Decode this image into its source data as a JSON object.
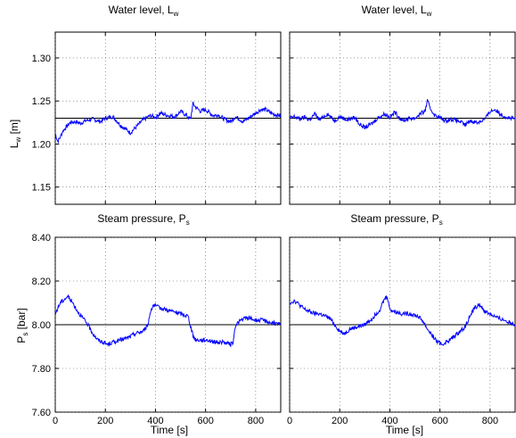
{
  "chart_data": [
    {
      "type": "line",
      "title": "Water level, L",
      "title_subscript": "w",
      "ylabel": "L",
      "ylabel_subscript": "w",
      "ylabel_unit": " [m]",
      "xlabel": "",
      "xlim": [
        0,
        900
      ],
      "ylim": [
        1.13,
        1.33
      ],
      "yticks": [
        1.15,
        1.2,
        1.25,
        1.3
      ],
      "xticks": [
        0,
        200,
        400,
        600,
        800
      ],
      "grid": true,
      "reference": 1.23,
      "series": [
        {
          "color": "#0000ff",
          "x": [
            0,
            10,
            20,
            30,
            45,
            60,
            80,
            100,
            120,
            150,
            180,
            200,
            230,
            260,
            300,
            330,
            350,
            380,
            400,
            420,
            450,
            480,
            500,
            520,
            540,
            550,
            560,
            580,
            600,
            630,
            650,
            680,
            700,
            720,
            750,
            780,
            800,
            820,
            840,
            860,
            880,
            900
          ],
          "y": [
            1.212,
            1.203,
            1.208,
            1.215,
            1.22,
            1.225,
            1.226,
            1.224,
            1.227,
            1.229,
            1.226,
            1.23,
            1.232,
            1.222,
            1.213,
            1.222,
            1.228,
            1.233,
            1.231,
            1.236,
            1.233,
            1.232,
            1.238,
            1.234,
            1.229,
            1.247,
            1.243,
            1.238,
            1.24,
            1.233,
            1.234,
            1.228,
            1.226,
            1.232,
            1.226,
            1.232,
            1.236,
            1.24,
            1.24,
            1.236,
            1.234,
            1.233
          ]
        }
      ]
    },
    {
      "type": "line",
      "title": "Water level, L",
      "title_subscript": "w",
      "ylabel": "",
      "xlabel": "",
      "xlim": [
        0,
        900
      ],
      "ylim": [
        1.13,
        1.33
      ],
      "yticks": [
        1.15,
        1.2,
        1.25,
        1.3
      ],
      "xticks": [
        0,
        200,
        400,
        600,
        800
      ],
      "grid": true,
      "reference": 1.23,
      "series": [
        {
          "color": "#0000ff",
          "x": [
            0,
            20,
            40,
            60,
            80,
            100,
            120,
            150,
            180,
            200,
            230,
            260,
            280,
            300,
            330,
            350,
            380,
            400,
            420,
            450,
            480,
            500,
            520,
            540,
            550,
            560,
            580,
            600,
            620,
            650,
            680,
            700,
            720,
            750,
            780,
            800,
            820,
            840,
            860,
            880,
            900
          ],
          "y": [
            1.23,
            1.232,
            1.229,
            1.231,
            1.228,
            1.235,
            1.228,
            1.235,
            1.227,
            1.232,
            1.228,
            1.231,
            1.223,
            1.219,
            1.224,
            1.23,
            1.235,
            1.231,
            1.237,
            1.227,
            1.23,
            1.23,
            1.235,
            1.238,
            1.25,
            1.242,
            1.233,
            1.231,
            1.227,
            1.229,
            1.226,
            1.222,
            1.227,
            1.225,
            1.229,
            1.238,
            1.24,
            1.235,
            1.232,
            1.23,
            1.229
          ]
        }
      ]
    },
    {
      "type": "line",
      "title": "Steam pressure, P",
      "title_subscript": "s",
      "ylabel": "P",
      "ylabel_subscript": "s",
      "ylabel_unit": " [bar]",
      "xlabel": "Time [s]",
      "xlim": [
        0,
        900
      ],
      "ylim": [
        7.6,
        8.4
      ],
      "yticks": [
        7.6,
        7.8,
        8.0,
        8.2,
        8.4
      ],
      "xticks": [
        0,
        200,
        400,
        600,
        800
      ],
      "grid": true,
      "reference": 8.0,
      "series": [
        {
          "color": "#0000ff",
          "x": [
            0,
            20,
            40,
            50,
            70,
            90,
            110,
            130,
            150,
            170,
            190,
            210,
            230,
            260,
            290,
            320,
            350,
            370,
            380,
            390,
            410,
            440,
            470,
            500,
            530,
            550,
            560,
            580,
            610,
            640,
            670,
            700,
            710,
            720,
            740,
            760,
            780,
            800,
            830,
            860,
            900
          ],
          "y": [
            8.05,
            8.1,
            8.12,
            8.13,
            8.1,
            8.06,
            8.03,
            8.0,
            7.96,
            7.93,
            7.92,
            7.91,
            7.92,
            7.93,
            7.94,
            7.96,
            7.97,
            8.0,
            8.06,
            8.09,
            8.08,
            8.07,
            8.06,
            8.05,
            8.04,
            7.95,
            7.93,
            7.93,
            7.93,
            7.92,
            7.92,
            7.91,
            7.92,
            8.0,
            8.02,
            8.03,
            8.03,
            8.02,
            8.02,
            8.01,
            8.0
          ]
        }
      ]
    },
    {
      "type": "line",
      "title": "Steam pressure, P",
      "title_subscript": "s",
      "ylabel": "",
      "xlabel": "Time [s]",
      "xlim": [
        0,
        900
      ],
      "ylim": [
        7.6,
        8.4
      ],
      "yticks": [
        7.6,
        7.8,
        8.0,
        8.2,
        8.4
      ],
      "xticks": [
        0,
        200,
        400,
        600,
        800
      ],
      "grid": true,
      "reference": 8.0,
      "series": [
        {
          "color": "#0000ff",
          "x": [
            0,
            20,
            40,
            60,
            80,
            100,
            120,
            140,
            160,
            180,
            200,
            220,
            240,
            270,
            300,
            330,
            360,
            380,
            390,
            400,
            420,
            450,
            480,
            510,
            530,
            550,
            570,
            590,
            610,
            640,
            670,
            700,
            720,
            740,
            760,
            780,
            800,
            830,
            860,
            900
          ],
          "y": [
            8.1,
            8.11,
            8.09,
            8.07,
            8.06,
            8.05,
            8.05,
            8.04,
            8.03,
            8.0,
            7.97,
            7.96,
            7.98,
            7.99,
            8.0,
            8.03,
            8.07,
            8.12,
            8.13,
            8.07,
            8.06,
            8.05,
            8.05,
            8.04,
            8.02,
            7.98,
            7.95,
            7.92,
            7.91,
            7.93,
            7.96,
            7.99,
            8.04,
            8.08,
            8.09,
            8.06,
            8.05,
            8.03,
            8.02,
            8.0
          ]
        }
      ]
    }
  ]
}
